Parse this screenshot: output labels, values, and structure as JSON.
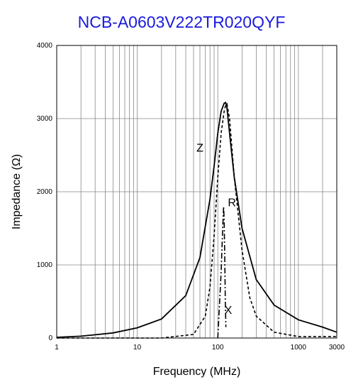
{
  "chart_data": {
    "type": "line",
    "title": "NCB-A0603V222TR020QYF",
    "xlabel": "Frequency (MHz)",
    "ylabel": "Impedance (Ω)",
    "x_scale": "log",
    "xlim": [
      1,
      3000
    ],
    "ylim": [
      0,
      4000
    ],
    "x_ticks": [
      1,
      10,
      100,
      1000,
      3000
    ],
    "x_tick_labels": [
      "1",
      "10",
      "100",
      "1000",
      "3000"
    ],
    "y_ticks": [
      0,
      1000,
      2000,
      3000,
      4000
    ],
    "y_tick_labels": [
      "0",
      "1000",
      "2000",
      "3000",
      "4000"
    ],
    "grid": true,
    "series": [
      {
        "name": "Z",
        "style": "solid",
        "x": [
          1,
          2,
          5,
          10,
          20,
          40,
          60,
          80,
          90,
          100,
          110,
          120,
          125,
          130,
          140,
          160,
          200,
          300,
          500,
          1000,
          2000,
          3000
        ],
        "y": [
          10,
          25,
          70,
          140,
          260,
          580,
          1100,
          1900,
          2350,
          2800,
          3100,
          3210,
          3220,
          3150,
          2800,
          2200,
          1500,
          800,
          450,
          250,
          150,
          80
        ]
      },
      {
        "name": "R",
        "style": "dashed",
        "x": [
          1,
          20,
          50,
          70,
          80,
          90,
          100,
          110,
          120,
          125,
          130,
          140,
          160,
          200,
          250,
          300,
          500,
          1000,
          3000
        ],
        "y": [
          0,
          0,
          50,
          300,
          700,
          1400,
          2200,
          2800,
          3100,
          3180,
          3200,
          3000,
          2200,
          1200,
          550,
          300,
          80,
          20,
          20
        ]
      },
      {
        "name": "X",
        "style": "dashdot",
        "x": [
          100,
          110,
          115,
          118,
          120,
          122,
          124,
          126
        ],
        "y": [
          0,
          900,
          1500,
          1800,
          1600,
          1100,
          500,
          150
        ]
      }
    ]
  }
}
